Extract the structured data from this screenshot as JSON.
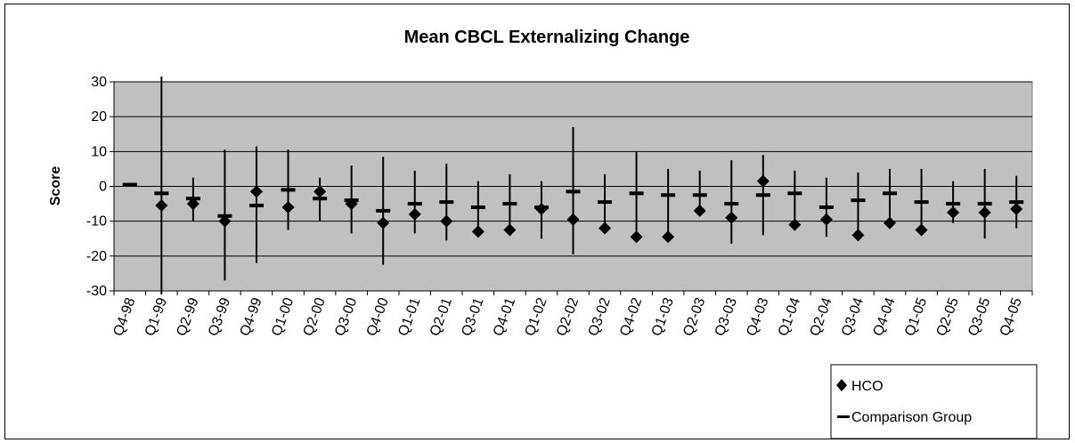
{
  "chart_data": {
    "type": "scatter",
    "title": "Mean CBCL Externalizing Change",
    "xlabel": "",
    "ylabel": "Score",
    "ylim": [
      -30,
      30
    ],
    "yticks": [
      30,
      20,
      10,
      0,
      -10,
      -20,
      -30
    ],
    "grid": true,
    "legend_position": "bottom-right",
    "categories": [
      "Q4-98",
      "Q1-99",
      "Q2-99",
      "Q3-99",
      "Q4-99",
      "Q1-00",
      "Q2-00",
      "Q3-00",
      "Q4-00",
      "Q1-01",
      "Q2-01",
      "Q3-01",
      "Q4-01",
      "Q1-02",
      "Q2-02",
      "Q3-02",
      "Q4-02",
      "Q1-03",
      "Q2-03",
      "Q3-03",
      "Q4-03",
      "Q1-04",
      "Q2-04",
      "Q3-04",
      "Q4-04",
      "Q1-05",
      "Q2-05",
      "Q3-05",
      "Q4-05"
    ],
    "series": [
      {
        "name": "HCO",
        "marker": "diamond",
        "values": [
          null,
          -5.5,
          -5,
          -10,
          -1.5,
          -6,
          -1.5,
          -5,
          -10.5,
          -8,
          -10,
          -13,
          -12.5,
          -6.5,
          -9.5,
          -12,
          -14.5,
          -14.5,
          -7,
          -9,
          1.5,
          -11,
          -9.5,
          -14,
          -10.5,
          -12.5,
          -7.5,
          -7.5,
          -6.5
        ]
      },
      {
        "name": "Comparison Group",
        "marker": "dash",
        "values": [
          0.5,
          -2,
          -3.5,
          -8.5,
          -5.5,
          -1,
          -3.5,
          -4,
          -7,
          -5,
          -4.5,
          -6,
          -5,
          -6,
          -1.5,
          -4.5,
          -2,
          -2.5,
          -2.5,
          -5,
          -2.5,
          -2,
          -6,
          -4,
          -2,
          -4.5,
          -5,
          -5,
          -4.5
        ]
      }
    ],
    "error_bars": [
      {
        "low": null,
        "high": null
      },
      {
        "low": -31,
        "high": 31.5
      },
      {
        "low": -10,
        "high": 2.5
      },
      {
        "low": -27,
        "high": 10.5
      },
      {
        "low": -22,
        "high": 11.5
      },
      {
        "low": -12.5,
        "high": 10.5
      },
      {
        "low": -10,
        "high": 2.5
      },
      {
        "low": -13.5,
        "high": 6
      },
      {
        "low": -22.5,
        "high": 8.5
      },
      {
        "low": -13.5,
        "high": 4.5
      },
      {
        "low": -15.5,
        "high": 6.5
      },
      {
        "low": -12.5,
        "high": 1.5
      },
      {
        "low": -11.5,
        "high": 3.5
      },
      {
        "low": -15,
        "high": 1.5
      },
      {
        "low": -19.5,
        "high": 17
      },
      {
        "low": -11.5,
        "high": 3.5
      },
      {
        "low": -14,
        "high": 10
      },
      {
        "low": -13.5,
        "high": 5
      },
      {
        "low": -6.5,
        "high": 4.5
      },
      {
        "low": -16.5,
        "high": 7.5
      },
      {
        "low": -14,
        "high": 9
      },
      {
        "low": -10.5,
        "high": 4.5
      },
      {
        "low": -14.5,
        "high": 2.5
      },
      {
        "low": -13.5,
        "high": 4
      },
      {
        "low": -9.5,
        "high": 5
      },
      {
        "low": -11.5,
        "high": 5
      },
      {
        "low": -10.5,
        "high": 1.5
      },
      {
        "low": -15,
        "high": 5
      },
      {
        "low": -12,
        "high": 3
      }
    ],
    "legend": [
      {
        "label": "HCO",
        "marker": "diamond"
      },
      {
        "label": "Comparison Group",
        "marker": "dash"
      }
    ],
    "colors": {
      "plot_background": "#c0c0c0",
      "marker": "#000000",
      "gridline": "#000000"
    }
  }
}
